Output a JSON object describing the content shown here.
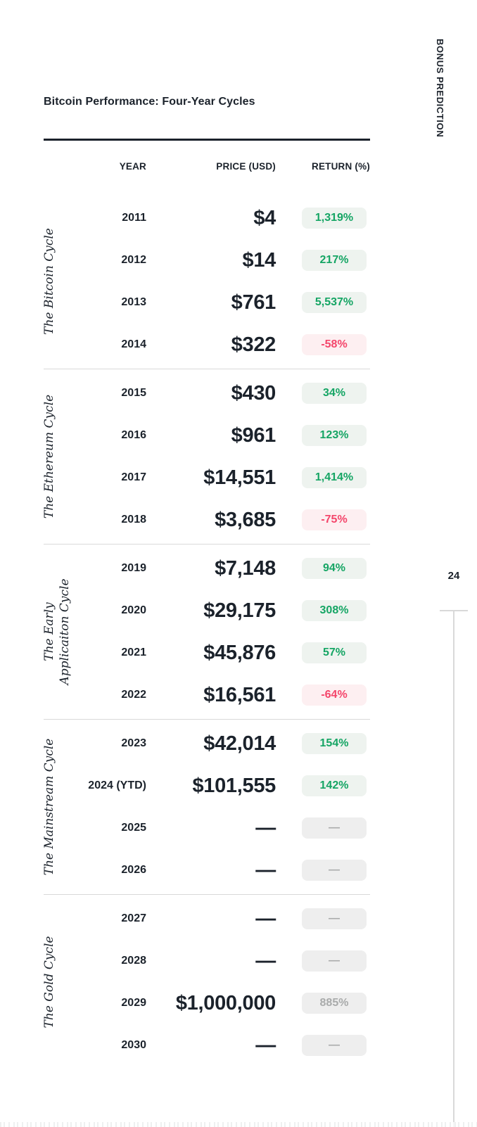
{
  "document": {
    "title": "Bitcoin Performance: Four-Year Cycles",
    "side_label": "BONUS PREDICTION",
    "page_number": "24"
  },
  "table": {
    "columns": {
      "year": "YEAR",
      "price": "PRICE (USD)",
      "return": "RETURN (%)"
    },
    "sections": [
      {
        "cycle": "The Bitcoin Cycle",
        "rows": [
          {
            "year": "2011",
            "price": "$4",
            "return": "1,319%",
            "return_type": "positive"
          },
          {
            "year": "2012",
            "price": "$14",
            "return": "217%",
            "return_type": "positive"
          },
          {
            "year": "2013",
            "price": "$761",
            "return": "5,537%",
            "return_type": "positive"
          },
          {
            "year": "2014",
            "price": "$322",
            "return": "-58%",
            "return_type": "negative"
          }
        ]
      },
      {
        "cycle": "The Ethereum Cycle",
        "rows": [
          {
            "year": "2015",
            "price": "$430",
            "return": "34%",
            "return_type": "positive"
          },
          {
            "year": "2016",
            "price": "$961",
            "return": "123%",
            "return_type": "positive"
          },
          {
            "year": "2017",
            "price": "$14,551",
            "return": "1,414%",
            "return_type": "positive"
          },
          {
            "year": "2018",
            "price": "$3,685",
            "return": "-75%",
            "return_type": "negative"
          }
        ]
      },
      {
        "cycle": "The Early\nApplicaiton Cycle",
        "rows": [
          {
            "year": "2019",
            "price": "$7,148",
            "return": "94%",
            "return_type": "positive"
          },
          {
            "year": "2020",
            "price": "$29,175",
            "return": "308%",
            "return_type": "positive"
          },
          {
            "year": "2021",
            "price": "$45,876",
            "return": "57%",
            "return_type": "positive"
          },
          {
            "year": "2022",
            "price": "$16,561",
            "return": "-64%",
            "return_type": "negative"
          }
        ]
      },
      {
        "cycle": "The Mainstream Cycle",
        "rows": [
          {
            "year": "2023",
            "price": "$42,014",
            "return": "154%",
            "return_type": "positive"
          },
          {
            "year": "2024 (YTD)",
            "price": "$101,555",
            "return": "142%",
            "return_type": "positive"
          },
          {
            "year": "2025",
            "price": "—",
            "return": "—",
            "return_type": "empty"
          },
          {
            "year": "2026",
            "price": "—",
            "return": "—",
            "return_type": "empty"
          }
        ]
      },
      {
        "cycle": "The Gold Cycle",
        "rows": [
          {
            "year": "2027",
            "price": "—",
            "return": "—",
            "return_type": "empty"
          },
          {
            "year": "2028",
            "price": "—",
            "return": "—",
            "return_type": "empty"
          },
          {
            "year": "2029",
            "price": "$1,000,000",
            "return": "885%",
            "return_type": "muted"
          },
          {
            "year": "2030",
            "price": "—",
            "return": "—",
            "return_type": "empty"
          }
        ]
      }
    ]
  },
  "colors": {
    "text": "#1b222b",
    "positive_text": "#15a564",
    "positive_bg": "#eef3ef",
    "negative_text": "#f4466b",
    "negative_bg": "#fdeff1",
    "muted_text": "#a9abab",
    "muted_bg": "#eeeeee",
    "rule_dark": "#1b222b",
    "rule_light": "#d9d9d9"
  }
}
